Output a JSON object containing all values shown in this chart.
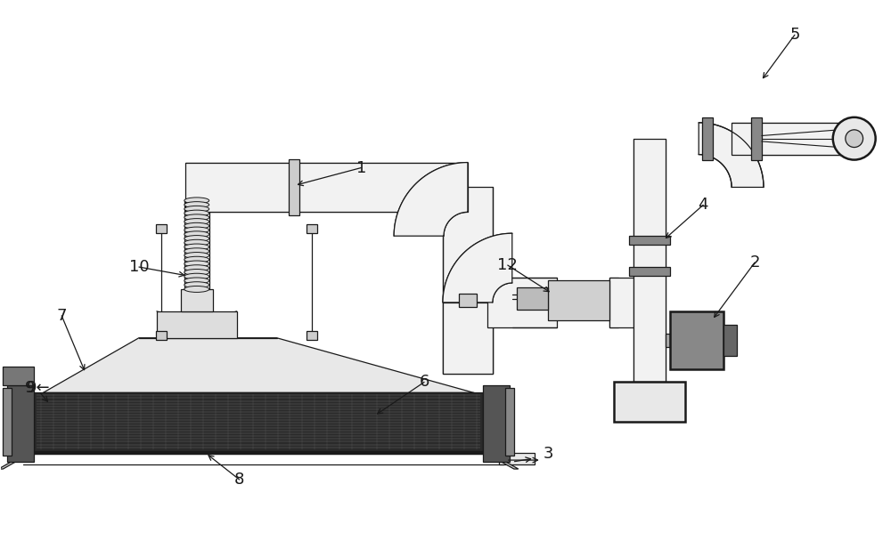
{
  "bg_color": "#ffffff",
  "line_color": "#1a1a1a",
  "label_color": "#1a1a1a",
  "label_fontsize": 13,
  "fig_width": 10.0,
  "fig_height": 6.26,
  "lw_main": 1.8,
  "lw_thin": 0.9,
  "lw_thick": 2.5
}
